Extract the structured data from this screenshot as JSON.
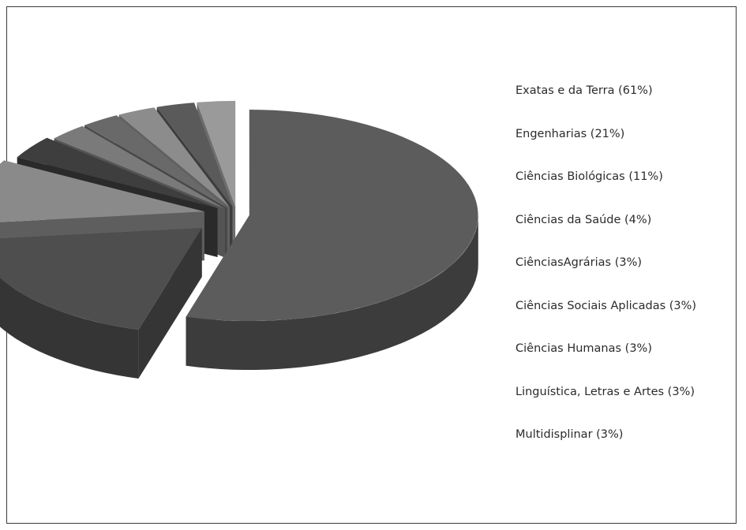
{
  "chart_data": {
    "type": "pie",
    "style": "3d-exploded",
    "categories": [
      "Exatas e da Terra",
      "Engenharias",
      "Ciências Biológicas",
      "Ciências da Saúde",
      "CiênciasAgrárias",
      "Ciências Sociais Aplicadas",
      "Ciências Humanas",
      "Linguística, Letras e Artes",
      "Multidisplinar"
    ],
    "values": [
      61,
      21,
      11,
      4,
      3,
      3,
      3,
      3,
      3
    ],
    "legend_labels": [
      "Exatas e da Terra (61%)",
      "Engenharias (21%)",
      "Ciências Biológicas (11%)",
      "Ciências da Saúde (4%)",
      "CiênciasAgrárias (3%)",
      "Ciências Sociais Aplicadas (3%)",
      "Ciências Humanas (3%)",
      "Linguística, Letras e Artes (3%)",
      "Multidisplinar (3%)"
    ],
    "legend_position": "right",
    "colors": [
      "#5c5c5c",
      "#4e4e4e",
      "#8a8a8a",
      "#3e3e3e",
      "#7a7a7a",
      "#696969",
      "#8c8c8c",
      "#5a5a5a",
      "#9a9a9a"
    ],
    "side_colors": [
      "#3c3c3c",
      "#353535",
      "#5e5e5e",
      "#2a2a2a",
      "#545454",
      "#474747",
      "#616161",
      "#3d3d3d",
      "#6d6d6d"
    ]
  }
}
